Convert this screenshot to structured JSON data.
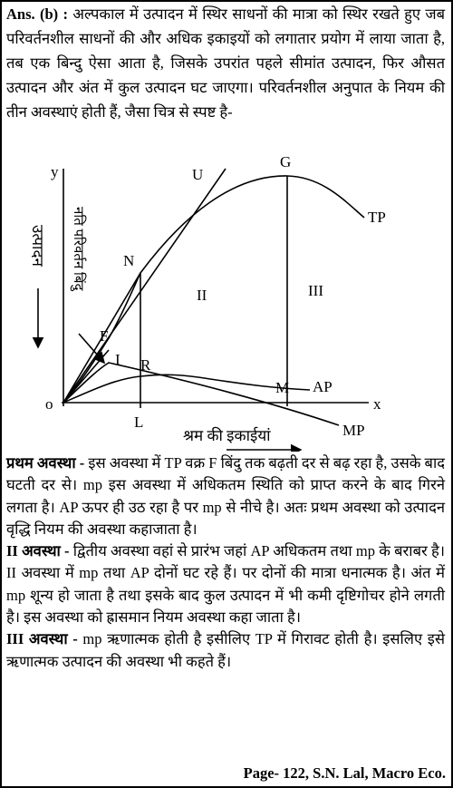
{
  "answer": {
    "label": "Ans. (b) :",
    "text": "अल्पकाल में उत्पादन में स्थिर साधनों की मात्रा को स्थिर रखते हुए जब परिवर्तनशील साधनों की और अधिक इकाइयों को लगातार प्रयोग में लाया जाता है, तब एक बिन्दु ऐसा आता है, जिसके उपरांत पहले सीमांत उत्पादन, फिर औसत उत्पादन और अंत में कुल उत्पादन घट जाएगा। परिवर्तनशील अनुपात के नियम की तीन अवस्थाएं होती हैं, जैसा चित्र से स्पष्ट है-"
  },
  "figure": {
    "y_axis": "y",
    "origin": "o",
    "x_axis": "x",
    "y_label": "उत्पादन",
    "inflection_label": "नति परिवर्तन बिंदु",
    "x_label": "श्रम की इकाईयां",
    "points": {
      "U": "U",
      "G": "G",
      "TP": "TP",
      "N": "N",
      "stage2": "II",
      "stage3": "III",
      "F": "F",
      "I": "I",
      "R": "R",
      "M": "M",
      "AP": "AP",
      "L": "L",
      "MP": "MP"
    }
  },
  "sections": [
    {
      "heading": "प्रथम अवस्था -",
      "text": "इस अवस्था में TP वक्र F बिंदु तक बढ़ती दर से बढ़ रहा है, उसके बाद घटती दर से। mp इस अवस्था में अधिकतम स्थिति को प्राप्त करने के बाद गिरने लगता है। AP ऊपर ही उठ रहा है पर mp से नीचे है। अतः प्रथम अवस्था को उत्पादन वृद्धि नियम की अवस्था कहाजाता है।"
    },
    {
      "heading": "II अवस्था -",
      "text": "द्वितीय अवस्था वहां से प्रारंभ जहां AP अधिकतम तथा mp के बराबर है। II अवस्था में mp तथा AP दोनों घट रहे हैं। पर दोनों की मात्रा धनात्मक है। अंत में mp शून्य हो जाता है तथा इसके बाद कुल उत्पादन में भी कमी दृष्टिगोचर होने लगती है। इस अवस्था को ह्रासमान नियम अवस्था कहा जाता है।"
    },
    {
      "heading": "III अवस्था -",
      "text": "mp ऋणात्मक होती है इसीलिए TP में गिरावट होती है। इसलिए इसे ऋणात्मक उत्पादन की अवस्था भी कहते हैं।"
    }
  ],
  "footer": "Page- 122, S.N. Lal, Macro Eco."
}
